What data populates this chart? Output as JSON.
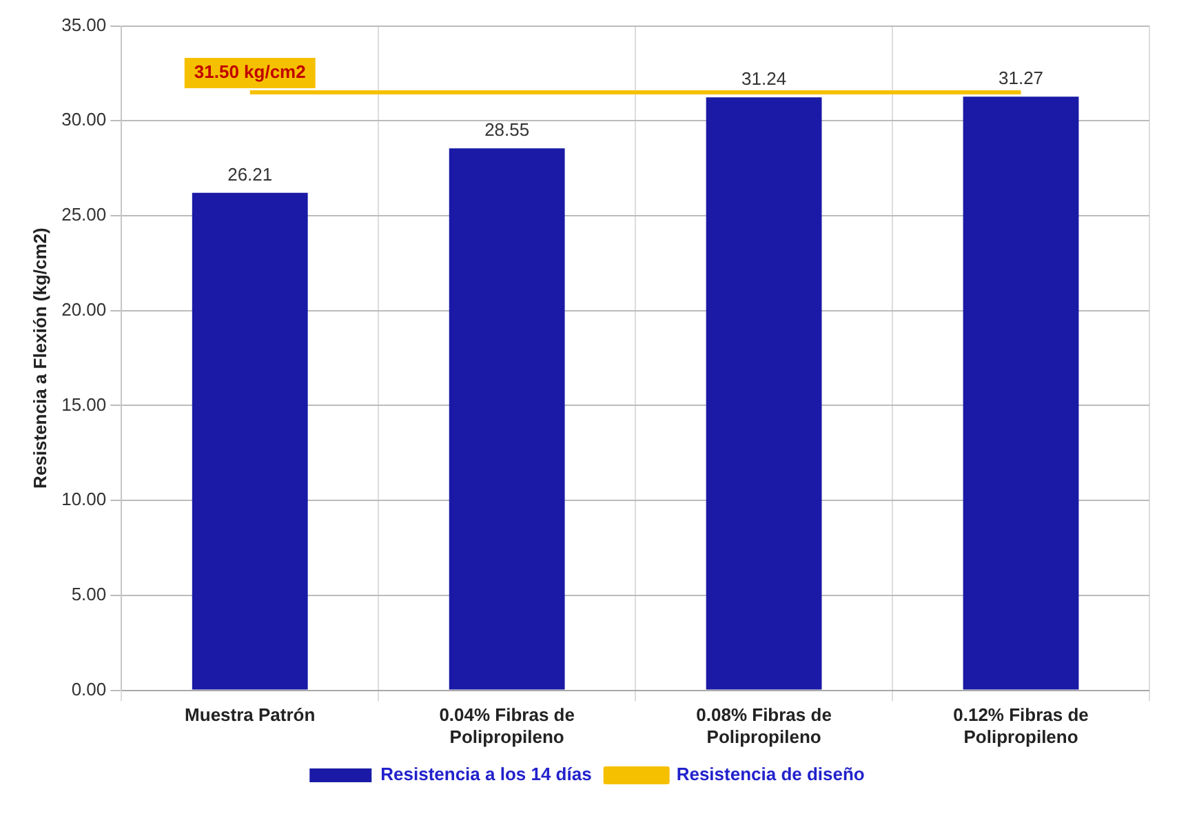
{
  "chart_data": {
    "type": "bar",
    "ylabel": "Resistencia a Flexión (kg/cm2)",
    "categories": [
      "Muestra Patrón",
      "0.04% Fibras de Polipropileno",
      "0.08% Fibras de Polipropileno",
      "0.12% Fibras de Polipropileno"
    ],
    "series": [
      {
        "name": "Resistencia a los 14 días",
        "color": "#1a1aa6",
        "values": [
          26.21,
          28.55,
          31.24,
          31.27
        ],
        "value_labels": [
          "26.21",
          "28.55",
          "31.24",
          "31.27"
        ]
      },
      {
        "name": "Resistencia de diseño",
        "type": "line",
        "color": "#f5c000",
        "values": [
          31.5,
          31.5,
          31.5,
          31.5
        ]
      }
    ],
    "annotations": [
      {
        "text": "31.50 kg/cm2",
        "x": "Muestra Patrón",
        "y": 31.5
      }
    ],
    "ylim": [
      0,
      35
    ],
    "yticks": [
      {
        "value": 0,
        "label": "0.00"
      },
      {
        "value": 5,
        "label": "5.00"
      },
      {
        "value": 10,
        "label": "10.00"
      },
      {
        "value": 15,
        "label": "15.00"
      },
      {
        "value": 20,
        "label": "20.00"
      },
      {
        "value": 25,
        "label": "25.00"
      },
      {
        "value": 30,
        "label": "30.00"
      },
      {
        "value": 35,
        "label": "35.00"
      }
    ],
    "grid": true,
    "legend": "bottom",
    "marker": "none"
  }
}
